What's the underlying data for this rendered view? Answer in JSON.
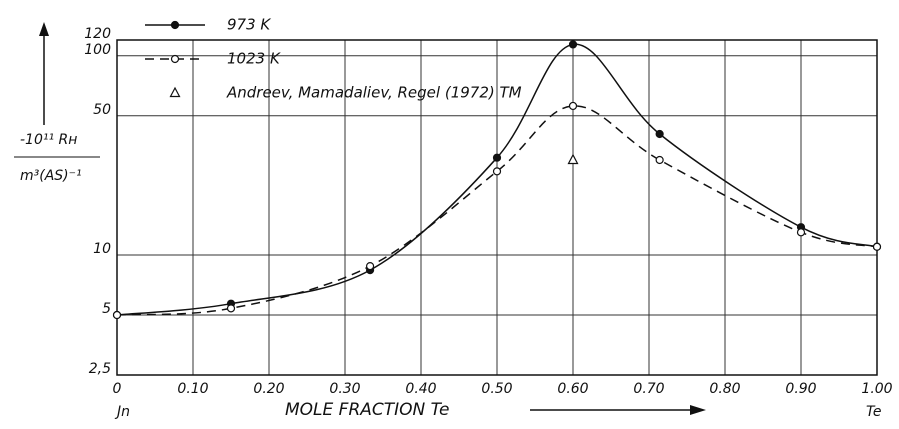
{
  "chart_data": {
    "type": "line",
    "y_label_top": "-10¹¹ Rн",
    "y_label_bottom": "m³(AS)⁻¹",
    "x_label": "MOLE FRACTION Te",
    "x_left_end": "Jn",
    "x_right_end": "Te",
    "log_y": true,
    "grid": true,
    "xlim": [
      0,
      1
    ],
    "ylim": [
      2.5,
      120
    ],
    "xticks": [
      0,
      {
        "value": 0.1,
        "label": "0.10"
      },
      {
        "value": 0.2,
        "label": "0.20"
      },
      {
        "value": 0.3,
        "label": "0.30"
      },
      {
        "value": 0.4,
        "label": "0.40"
      },
      {
        "value": 0.5,
        "label": "0.50"
      },
      {
        "value": 0.6,
        "label": "0.60"
      },
      {
        "value": 0.7,
        "label": "0.70"
      },
      {
        "value": 0.8,
        "label": "0.80"
      },
      {
        "value": 0.9,
        "label": "0.90"
      },
      {
        "value": 1,
        "label": "1.00"
      }
    ],
    "yticks": [
      {
        "value": 2.5,
        "label": "2,5"
      },
      5,
      10,
      50,
      100,
      120
    ],
    "series": [
      {
        "name": "973 K",
        "color": "#111",
        "dash": false,
        "marker": "filled-circle",
        "x": [
          0,
          0.15,
          0.333,
          0.5,
          0.6,
          0.714,
          0.9,
          1.0
        ],
        "values": [
          5.0,
          5.7,
          8.4,
          30.8,
          114,
          40.5,
          13.8,
          11
        ]
      },
      {
        "name": "1023 K",
        "color": "#111",
        "dash": true,
        "marker": "open-circle",
        "x": [
          0,
          0.15,
          0.333,
          0.5,
          0.6,
          0.714,
          0.9,
          1.0
        ],
        "values": [
          5.0,
          5.4,
          8.8,
          26.3,
          56,
          30,
          13,
          11
        ]
      },
      {
        "name": "Andreev, Mamadaliev, Regel (1972) TM",
        "color": "#111",
        "marker": "triangle",
        "line": false,
        "x": [
          0.6
        ],
        "values": [
          30
        ]
      }
    ]
  }
}
